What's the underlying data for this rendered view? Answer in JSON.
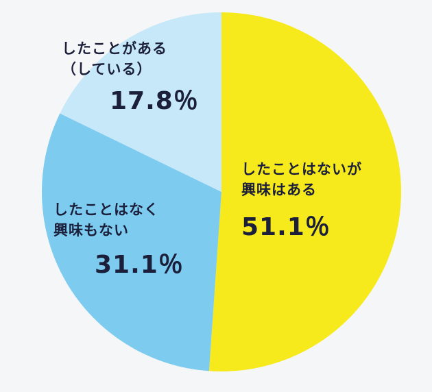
{
  "chart_data": {
    "type": "pie",
    "slices": [
      {
        "label": "したことはないが\n興味はある",
        "value": 51.1,
        "display": "51.1％",
        "color": "#f7ea1c"
      },
      {
        "label": "したことはなく\n興味もない",
        "value": 31.1,
        "display": "31.1％",
        "color": "#7ecbf0"
      },
      {
        "label": "したことがある\n（している）",
        "value": 17.8,
        "display": "17.8％",
        "color": "#c6e8f8"
      }
    ],
    "start": "top",
    "direction": "clockwise"
  }
}
